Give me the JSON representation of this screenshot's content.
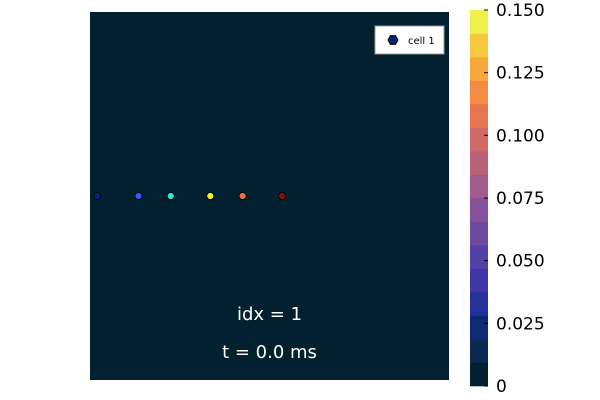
{
  "chart_data": {
    "type": "scatter",
    "background_color": "#02202f",
    "xlim": [
      0,
      1
    ],
    "ylim": [
      0,
      1
    ],
    "points": [
      {
        "x": 0.02,
        "y": 0.5,
        "color": "#0a1f78"
      },
      {
        "x": 0.135,
        "y": 0.5,
        "color": "#2f5bff"
      },
      {
        "x": 0.225,
        "y": 0.5,
        "color": "#2ee6d6"
      },
      {
        "x": 0.335,
        "y": 0.5,
        "color": "#f7f21a"
      },
      {
        "x": 0.425,
        "y": 0.5,
        "color": "#f26d3a"
      },
      {
        "x": 0.535,
        "y": 0.5,
        "color": "#8a0b0b"
      }
    ],
    "legend": {
      "placement": "top-right",
      "entries": [
        {
          "label": "cell 1",
          "marker": "hexagon",
          "color": "#0a1f78"
        }
      ]
    },
    "annotations": [
      "idx = 1",
      "t = 0.0 ms"
    ],
    "colorbar": {
      "range": [
        0,
        0.15
      ],
      "ticks": [
        "0",
        "0.025",
        "0.050",
        "0.075",
        "0.100",
        "0.125",
        "0.150"
      ],
      "tick_values": [
        0,
        0.025,
        0.05,
        0.075,
        0.1,
        0.125,
        0.15
      ],
      "colors": [
        "#02202f",
        "#0a2a52",
        "#0f2a75",
        "#26309a",
        "#4036a8",
        "#5540a8",
        "#6c4aa0",
        "#86509a",
        "#a05a8c",
        "#bb6278",
        "#d16a66",
        "#e67650",
        "#f58a42",
        "#f8a83a",
        "#f7c83d",
        "#f0f04a"
      ]
    }
  }
}
